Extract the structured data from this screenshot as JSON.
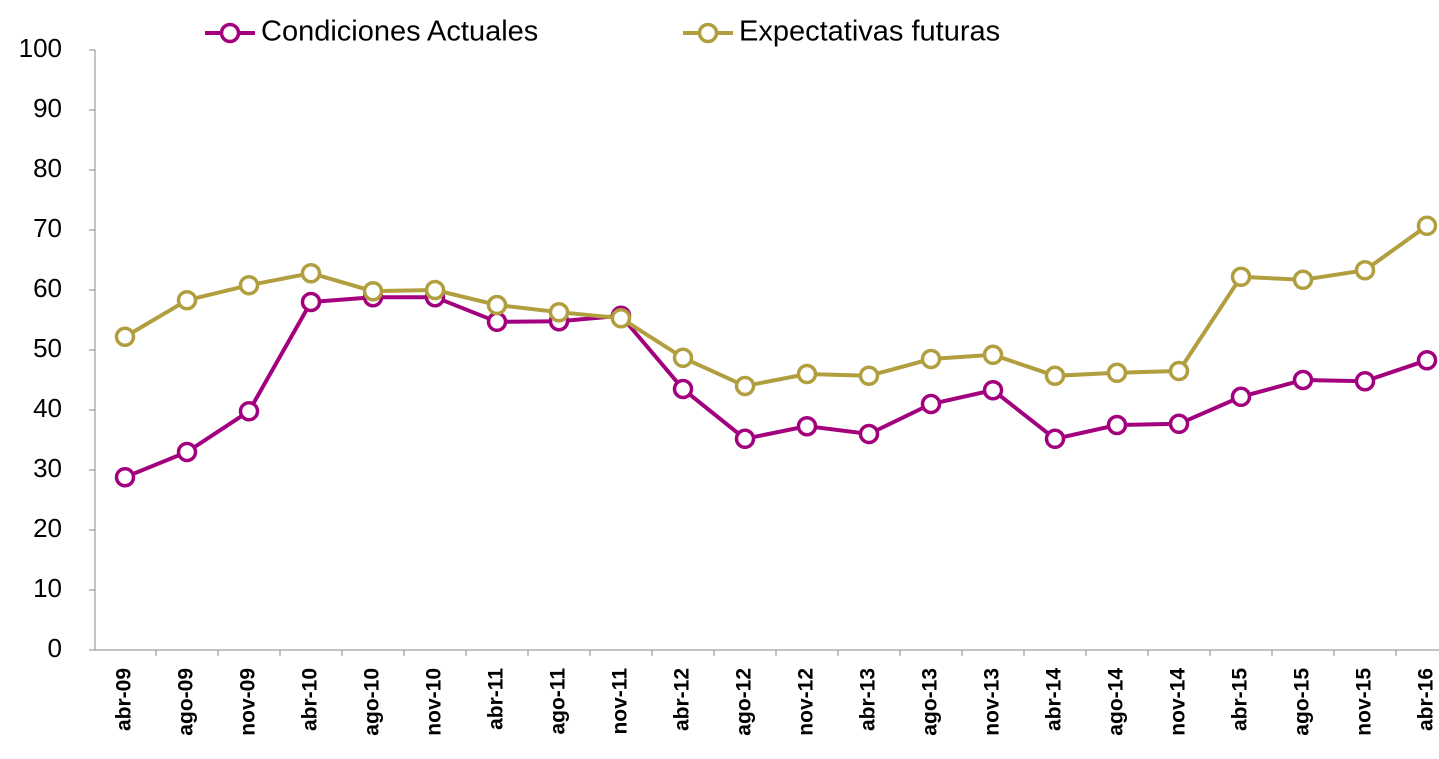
{
  "chart_data": {
    "type": "line",
    "categories": [
      "abr-09",
      "ago-09",
      "nov-09",
      "abr-10",
      "ago-10",
      "nov-10",
      "abr-11",
      "ago-11",
      "nov-11",
      "abr-12",
      "ago-12",
      "nov-12",
      "abr-13",
      "ago-13",
      "nov-13",
      "abr-14",
      "ago-14",
      "nov-14",
      "abr-15",
      "ago-15",
      "nov-15",
      "abr-16"
    ],
    "series": [
      {
        "name": "Condiciones Actuales",
        "color": "#a3007e",
        "values": [
          28.8,
          33,
          39.8,
          58,
          58.8,
          58.8,
          54.7,
          54.8,
          55.7,
          43.5,
          35.2,
          37.3,
          36,
          41,
          43.3,
          35.2,
          37.5,
          37.7,
          42.2,
          45,
          44.8,
          48.3
        ]
      },
      {
        "name": "Expectativas futuras",
        "color": "#b19e3e",
        "values": [
          52.2,
          58.3,
          60.8,
          62.8,
          59.8,
          60,
          57.5,
          56.3,
          55.3,
          48.7,
          44,
          46,
          45.7,
          48.5,
          49.2,
          45.7,
          46.2,
          46.5,
          62.2,
          61.7,
          63.3,
          70.7
        ]
      }
    ],
    "ylim": [
      0,
      100
    ],
    "yticks": [
      0,
      10,
      20,
      30,
      40,
      50,
      60,
      70,
      80,
      90,
      100
    ],
    "grid": false,
    "legend": "top"
  }
}
